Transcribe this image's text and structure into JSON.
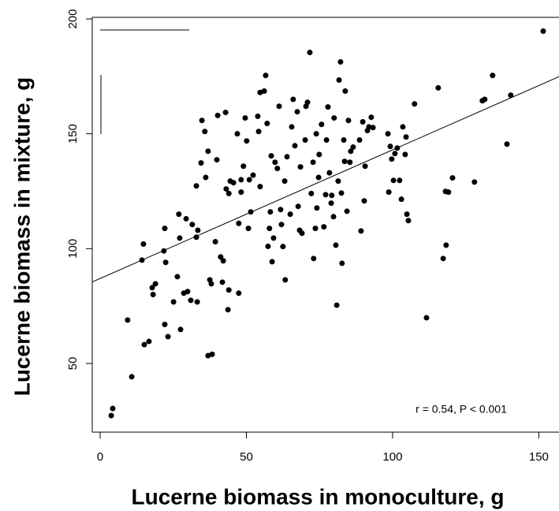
{
  "chart_data": {
    "type": "scatter",
    "x_label": "Lucerne biomass in monoculture, g",
    "y_label": "Lucerne biomass in mixture, g",
    "annotation": "r = 0.54, P < 0.001",
    "color": "#000000",
    "xlim": [
      -2.7,
      156.9
    ],
    "ylim": [
      20.1,
      200.7
    ],
    "xticks": [
      0,
      50,
      100,
      150
    ],
    "yticks": [
      50,
      100,
      150,
      200
    ],
    "trend_line": {
      "slope": 0.56,
      "intercept": 87
    },
    "x": [
      3.8,
      4.3,
      10.8,
      9.4,
      15.1,
      16.7,
      14.8,
      14.3,
      17.8,
      18.1,
      18.9,
      21.8,
      22.1,
      22.1,
      23.2,
      22.4,
      25.1,
      26.4,
      26.9,
      27.5,
      27.2,
      28.6,
      29.4,
      29.9,
      31,
      31.5,
      32.9,
      33.2,
      32.9,
      33.4,
      34.5,
      34.8,
      35.8,
      36.1,
      36.9,
      37.5,
      38,
      36.9,
      38.3,
      39.4,
      39.9,
      40.2,
      41.2,
      41.8,
      42.1,
      42.9,
      43.1,
      44,
      43.7,
      44,
      44.5,
      45.6,
      46.9,
      47.4,
      47.4,
      48.2,
      49,
      48.2,
      49.6,
      50.1,
      50.7,
      51,
      51.5,
      52.3,
      53.9,
      54.2,
      54.7,
      54.7,
      56.1,
      56.6,
      57.1,
      57.4,
      57.9,
      58.2,
      58.5,
      58.8,
      59.3,
      59.8,
      60.6,
      61.2,
      61.7,
      62,
      62.5,
      63.1,
      63.3,
      63.9,
      65,
      65.5,
      66,
      66.6,
      67.4,
      67.7,
      68.2,
      68.5,
      69,
      70.1,
      70.4,
      70.9,
      71.7,
      72.2,
      72.8,
      73,
      73.6,
      73.9,
      74.1,
      74.7,
      74.9,
      75.7,
      76.5,
      77.1,
      77.4,
      77.9,
      78.4,
      79,
      79.2,
      79.8,
      80,
      80.6,
      80.9,
      81.4,
      81.7,
      82.2,
      82.5,
      82.7,
      83.3,
      83.6,
      83.8,
      84.4,
      84.9,
      85.4,
      85.7,
      86.5,
      88.7,
      89.2,
      89.8,
      90.3,
      90.6,
      91.4,
      91.9,
      92.7,
      93.3,
      98.4,
      98.7,
      99.2,
      99.7,
      100.3,
      100.8,
      101.6,
      102.4,
      103,
      103.5,
      104.3,
      104.6,
      104.9,
      105.4,
      107.5,
      111.6,
      115.6,
      117.3,
      118.1,
      118.3,
      119.1,
      120.5,
      128,
      130.7,
      131.5,
      134.2,
      139.1,
      140.4,
      151.5
    ],
    "values": [
      27.3,
      30.4,
      44.2,
      68.9,
      58.2,
      59.6,
      102,
      95,
      83,
      80,
      84.7,
      99,
      108.8,
      67,
      61.7,
      94,
      76.8,
      87.8,
      115,
      64.8,
      104.6,
      80.6,
      113,
      81.3,
      77.5,
      110.5,
      105,
      76.8,
      127.3,
      108,
      137.3,
      155.8,
      151,
      131,
      142.4,
      86.4,
      84.7,
      53.4,
      54,
      103,
      138.7,
      158,
      96.4,
      85.4,
      94.7,
      159.3,
      126,
      82,
      73.4,
      124,
      129.4,
      128.7,
      150,
      111,
      80.6,
      130,
      135.9,
      124.6,
      156.9,
      146.9,
      108.8,
      130,
      116,
      132,
      157.6,
      151,
      168,
      127,
      168.6,
      175.4,
      154.5,
      101,
      108.8,
      116,
      140.4,
      94.3,
      104.6,
      137.6,
      134.9,
      162,
      117,
      110.5,
      100.9,
      129.4,
      86.4,
      140,
      115,
      153,
      165,
      144.8,
      159.6,
      118.4,
      108,
      135.6,
      106.7,
      147.3,
      162,
      163.7,
      185.4,
      124,
      137.6,
      95.7,
      108.8,
      150,
      117.7,
      131,
      141,
      154.1,
      109.5,
      123.5,
      147.3,
      161.7,
      133,
      119.8,
      123.2,
      113.9,
      156.9,
      101.5,
      75.4,
      129.4,
      173.4,
      181.3,
      124.2,
      93.6,
      147.3,
      138,
      168.6,
      116.3,
      155.8,
      137.6,
      142.4,
      144.2,
      147.3,
      107.7,
      155.2,
      120.8,
      135.9,
      151.4,
      153,
      157.2,
      152.7,
      150,
      124.6,
      144.5,
      139,
      129.7,
      141.4,
      143.8,
      129.7,
      121.5,
      153,
      141,
      148.6,
      115,
      112.2,
      163,
      69.9,
      170,
      95.7,
      124.9,
      101.5,
      124.6,
      130.8,
      129,
      164.4,
      165,
      175.4,
      145.5,
      166.8,
      194.7
    ]
  }
}
